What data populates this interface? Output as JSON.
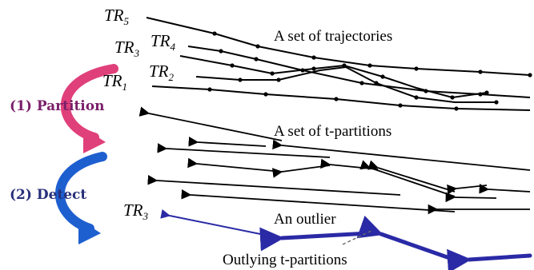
{
  "colors": {
    "trajectory": "#000000",
    "outlier": "#2a2aa6",
    "partition_arrow": "#e0407a",
    "detect_arrow": "#1e5fd0",
    "partition_text": "#7a1f6a",
    "detect_text": "#28307a",
    "callout": "#666666"
  },
  "trajectory_labels": [
    {
      "base": "TR",
      "sub": "5"
    },
    {
      "base": "TR",
      "sub": "4"
    },
    {
      "base": "TR",
      "sub": "3"
    },
    {
      "base": "TR",
      "sub": "2"
    },
    {
      "base": "TR",
      "sub": "1"
    }
  ],
  "section_titles": {
    "trajectories": "A set of trajectories",
    "partitions": "A set of t-partitions",
    "outlier": "An outlier",
    "outlying": "Outlying t-partitions"
  },
  "steps": {
    "partition": "(1) Partition",
    "detect": "(2) Detect"
  },
  "outlier_label": {
    "base": "TR",
    "sub": "3"
  }
}
